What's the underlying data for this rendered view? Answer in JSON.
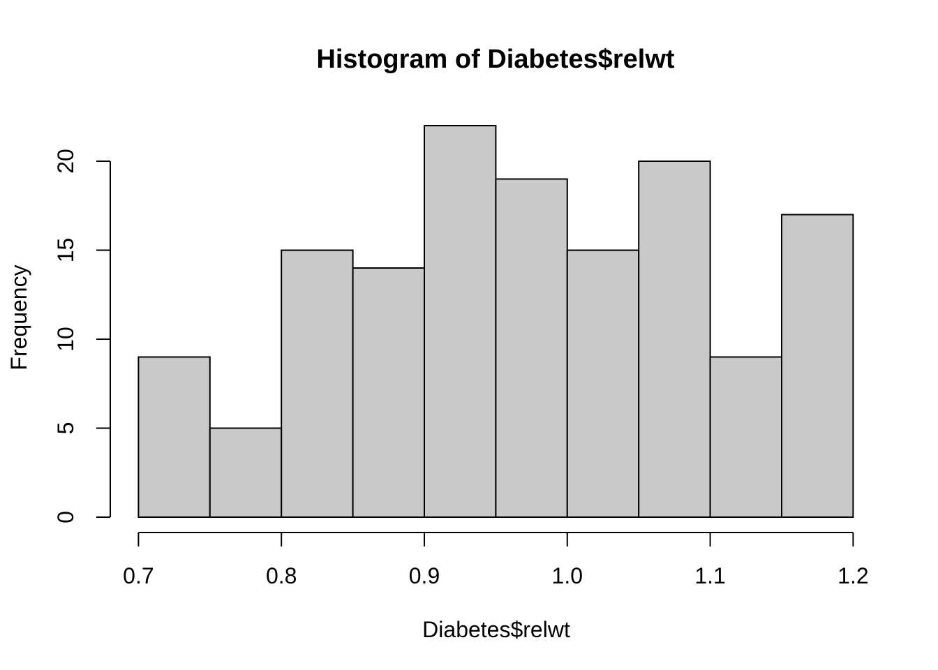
{
  "chart_data": {
    "type": "bar",
    "subtype": "histogram",
    "title": "Histogram of Diabetes$relwt",
    "xlabel": "Diabetes$relwt",
    "ylabel": "Frequency",
    "bin_edges": [
      0.7,
      0.75,
      0.8,
      0.85,
      0.9,
      0.95,
      1.0,
      1.05,
      1.1,
      1.15,
      1.2
    ],
    "values": [
      9,
      5,
      15,
      14,
      22,
      19,
      15,
      20,
      9,
      17
    ],
    "x_ticks": [
      0.7,
      0.8,
      0.9,
      1.0,
      1.1,
      1.2
    ],
    "x_tick_labels": [
      "0.7",
      "0.8",
      "0.9",
      "1.0",
      "1.1",
      "1.2"
    ],
    "y_ticks": [
      0,
      5,
      10,
      15,
      20
    ],
    "y_tick_labels": [
      "0",
      "5",
      "10",
      "15",
      "20"
    ],
    "xlim": [
      0.7,
      1.2
    ],
    "ylim": [
      0,
      22
    ],
    "grid": false,
    "legend": "none",
    "colors": {
      "bar_fill": "#C9C9C9",
      "bar_border": "#000000",
      "axis": "#000000",
      "text": "#000000",
      "background": "#FFFFFF"
    }
  }
}
